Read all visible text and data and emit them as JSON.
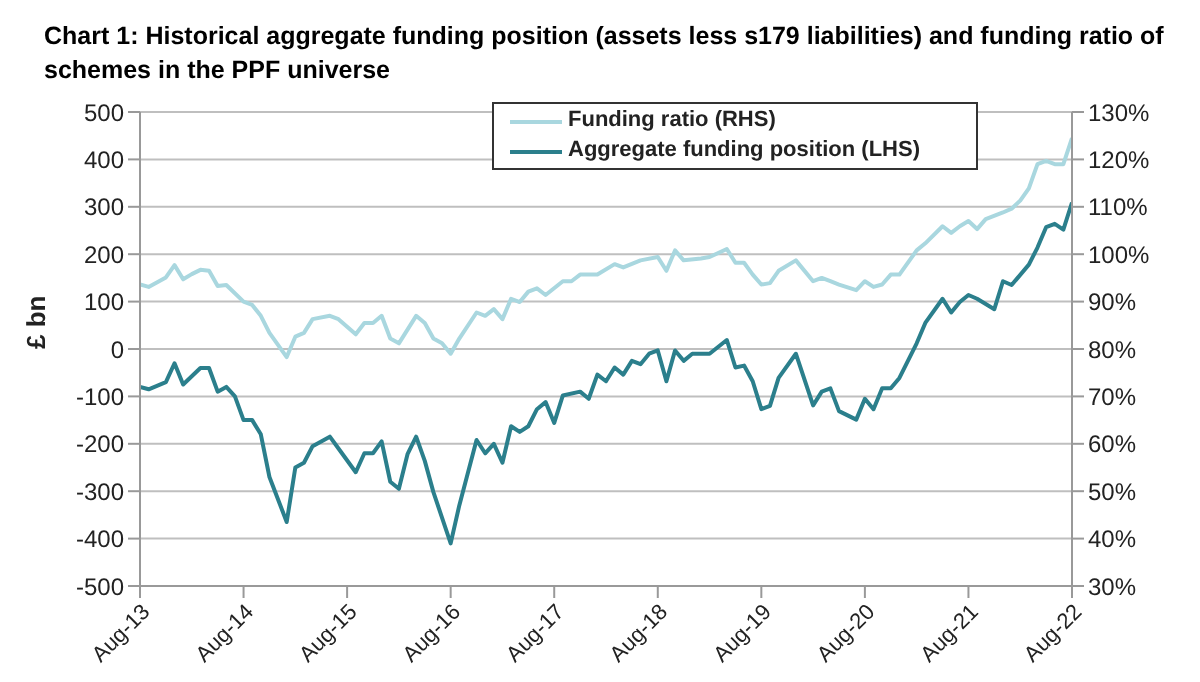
{
  "chart_data": {
    "type": "line",
    "title": "Chart 1: Historical aggregate funding position (assets less s179 liabilities) and funding ratio of schemes in the PPF universe",
    "ylabel": "£ bn",
    "ylim": [
      -500,
      500
    ],
    "yticks": [
      -500,
      -400,
      -300,
      -200,
      -100,
      0,
      100,
      200,
      300,
      400,
      500
    ],
    "y2lim": [
      30,
      130
    ],
    "y2ticks": [
      {
        "value": 30,
        "label": "30%"
      },
      {
        "value": 40,
        "label": "40%"
      },
      {
        "value": 50,
        "label": "50%"
      },
      {
        "value": 60,
        "label": "60%"
      },
      {
        "value": 70,
        "label": "70%"
      },
      {
        "value": 80,
        "label": "80%"
      },
      {
        "value": 90,
        "label": "90%"
      },
      {
        "value": 100,
        "label": "100%"
      },
      {
        "value": 110,
        "label": "110%"
      },
      {
        "value": 120,
        "label": "120%"
      },
      {
        "value": 130,
        "label": "130%"
      }
    ],
    "xlim": [
      "2013-08",
      "2022-08"
    ],
    "xticks": [
      {
        "value": "2013-08",
        "label": "Aug-13"
      },
      {
        "value": "2014-08",
        "label": "Aug-14"
      },
      {
        "value": "2015-08",
        "label": "Aug-15"
      },
      {
        "value": "2016-08",
        "label": "Aug-16"
      },
      {
        "value": "2017-08",
        "label": "Aug-17"
      },
      {
        "value": "2018-08",
        "label": "Aug-18"
      },
      {
        "value": "2019-08",
        "label": "Aug-19"
      },
      {
        "value": "2020-08",
        "label": "Aug-20"
      },
      {
        "value": "2021-08",
        "label": "Aug-21"
      },
      {
        "value": "2022-08",
        "label": "Aug-22"
      }
    ],
    "grid": "y",
    "legend": "top right",
    "marker": "none",
    "line_style": "solid",
    "series": [
      {
        "name": "Funding ratio (RHS)",
        "color": "#a9d7df",
        "axis": "y2",
        "x": [
          "2013-08",
          "2013-09",
          "2013-11",
          "2013-12",
          "2014-01",
          "2014-02",
          "2014-03",
          "2014-04",
          "2014-05",
          "2014-06",
          "2014-08",
          "2014-09",
          "2014-10",
          "2014-11",
          "2015-01",
          "2015-02",
          "2015-03",
          "2015-04",
          "2015-06",
          "2015-07",
          "2015-09",
          "2015-10",
          "2015-11",
          "2015-12",
          "2016-01",
          "2016-02",
          "2016-04",
          "2016-05",
          "2016-06",
          "2016-07",
          "2016-08",
          "2016-09",
          "2016-11",
          "2016-12",
          "2017-01",
          "2017-02",
          "2017-03",
          "2017-04",
          "2017-05",
          "2017-06",
          "2017-07",
          "2017-09",
          "2017-10",
          "2017-11",
          "2018-01",
          "2018-03",
          "2018-04",
          "2018-06",
          "2018-08",
          "2018-09",
          "2018-10",
          "2018-11",
          "2019-01",
          "2019-02",
          "2019-04",
          "2019-05",
          "2019-06",
          "2019-07",
          "2019-08",
          "2019-09",
          "2019-10",
          "2019-12",
          "2020-02",
          "2020-03",
          "2020-04",
          "2020-05",
          "2020-07",
          "2020-08",
          "2020-09",
          "2020-10",
          "2020-11",
          "2020-12",
          "2021-02",
          "2021-03",
          "2021-05",
          "2021-06",
          "2021-07",
          "2021-08",
          "2021-09",
          "2021-10",
          "2021-12",
          "2022-01",
          "2022-02",
          "2022-03",
          "2022-04",
          "2022-05",
          "2022-06",
          "2022-07",
          "2022-08"
        ],
        "values": [
          93.6,
          93.1,
          95.1,
          97.7,
          94.7,
          95.8,
          96.7,
          96.5,
          93.3,
          93.5,
          90,
          89.3,
          87,
          83.4,
          78.3,
          82.6,
          83.4,
          86.3,
          87,
          86.3,
          83.1,
          85.5,
          85.5,
          87,
          82.2,
          81.2,
          87,
          85.5,
          82.2,
          81.2,
          79,
          82.2,
          87.7,
          87,
          88.4,
          86.3,
          90.6,
          89.9,
          92.1,
          92.8,
          91.4,
          94.3,
          94.3,
          95.7,
          95.7,
          97.9,
          97.2,
          98.7,
          99.4,
          96.5,
          100.8,
          98.7,
          99.1,
          99.4,
          101.1,
          98.2,
          98.2,
          95.7,
          93.6,
          93.9,
          96.5,
          98.7,
          94.3,
          95,
          94.3,
          93.6,
          92.4,
          94.3,
          93.1,
          93.6,
          95.7,
          95.7,
          100.8,
          102.3,
          105.9,
          104.5,
          105.9,
          107,
          105.3,
          107.4,
          108.8,
          109.6,
          111.3,
          113.9,
          119,
          119.7,
          119,
          119,
          124.5
        ]
      },
      {
        "name": "Aggregate funding position (LHS)",
        "color": "#2b7f8c",
        "x": [
          "2013-08",
          "2013-09",
          "2013-11",
          "2013-12",
          "2014-01",
          "2014-03",
          "2014-04",
          "2014-05",
          "2014-06",
          "2014-07",
          "2014-08",
          "2014-09",
          "2014-10",
          "2014-11",
          "2015-01",
          "2015-02",
          "2015-03",
          "2015-04",
          "2015-06",
          "2015-07",
          "2015-09",
          "2015-10",
          "2015-11",
          "2015-12",
          "2016-01",
          "2016-02",
          "2016-03",
          "2016-04",
          "2016-05",
          "2016-06",
          "2016-08",
          "2016-09",
          "2016-11",
          "2016-12",
          "2017-01",
          "2017-02",
          "2017-03",
          "2017-04",
          "2017-05",
          "2017-06",
          "2017-07",
          "2017-08",
          "2017-09",
          "2017-11",
          "2017-12",
          "2018-01",
          "2018-02",
          "2018-03",
          "2018-04",
          "2018-05",
          "2018-06",
          "2018-07",
          "2018-08",
          "2018-09",
          "2018-10",
          "2018-11",
          "2018-12",
          "2019-01",
          "2019-02",
          "2019-04",
          "2019-05",
          "2019-06",
          "2019-07",
          "2019-08",
          "2019-09",
          "2019-10",
          "2019-12",
          "2020-02",
          "2020-03",
          "2020-04",
          "2020-05",
          "2020-07",
          "2020-08",
          "2020-09",
          "2020-10",
          "2020-11",
          "2020-12",
          "2021-02",
          "2021-03",
          "2021-05",
          "2021-06",
          "2021-07",
          "2021-08",
          "2021-09",
          "2021-11",
          "2021-12",
          "2022-01",
          "2022-03",
          "2022-04",
          "2022-05",
          "2022-06",
          "2022-07",
          "2022-08"
        ],
        "values": [
          -80,
          -85,
          -70,
          -30,
          -75,
          -40,
          -40,
          -90,
          -80,
          -100,
          -150,
          -150,
          -180,
          -270,
          -365,
          -250,
          -240,
          -205,
          -185,
          -210,
          -260,
          -220,
          -220,
          -195,
          -280,
          -295,
          -222,
          -185,
          -236,
          -302,
          -410,
          -330,
          -192,
          -220,
          -200,
          -240,
          -163,
          -175,
          -163,
          -127,
          -112,
          -156,
          -98,
          -90,
          -105,
          -54,
          -68,
          -39,
          -54,
          -25,
          -32,
          -10,
          -3,
          -68,
          -3,
          -25,
          -10,
          -10,
          -10,
          19,
          -39,
          -35,
          -68,
          -127,
          -120,
          -61,
          -10,
          -119,
          -90,
          -83,
          -131,
          -149,
          -105,
          -127,
          -83,
          -83,
          -61,
          12,
          55,
          106,
          77,
          99,
          114,
          106,
          84,
          143,
          135,
          178,
          214,
          257,
          264,
          252,
          309
        ]
      }
    ]
  }
}
